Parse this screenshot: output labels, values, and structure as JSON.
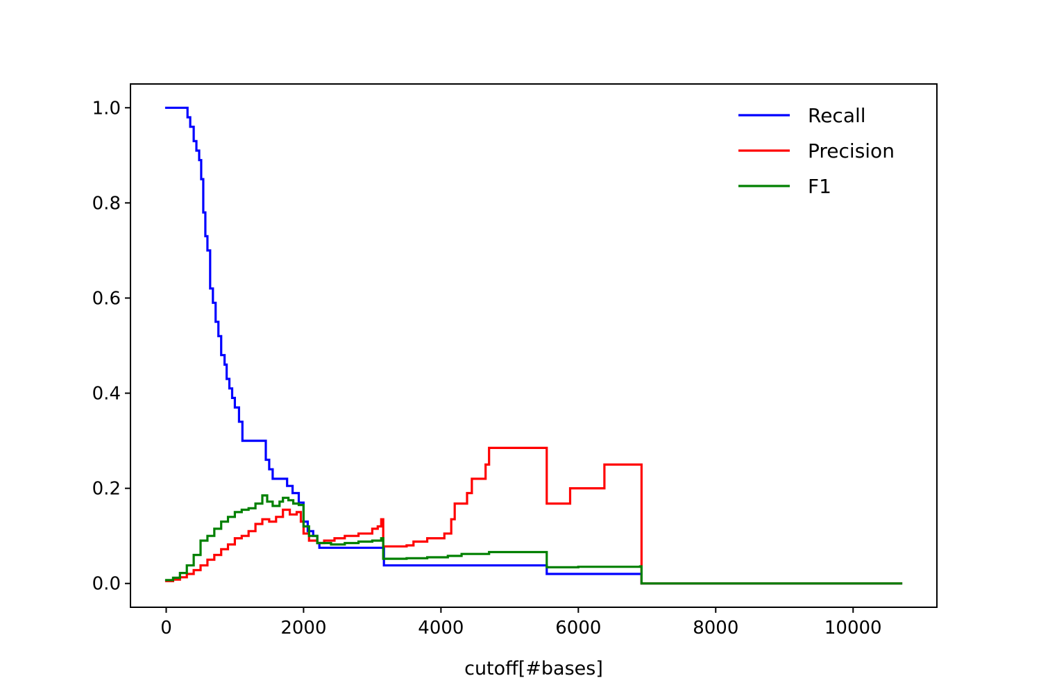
{
  "chart_data": {
    "type": "line",
    "title": "",
    "xlabel": "cutoff[#bases]",
    "ylabel": "",
    "xlim": [
      -520,
      11220
    ],
    "ylim": [
      -0.05,
      1.05
    ],
    "x_ticks": [
      0,
      2000,
      4000,
      6000,
      8000,
      10000
    ],
    "x_tick_labels": [
      "0",
      "2000",
      "4000",
      "6000",
      "8000",
      "10000"
    ],
    "y_ticks": [
      0.0,
      0.2,
      0.4,
      0.6,
      0.8,
      1.0
    ],
    "y_tick_labels": [
      "0.0",
      "0.2",
      "0.4",
      "0.6",
      "0.8",
      "1.0"
    ],
    "grid": false,
    "legend_position": "top-right",
    "series": [
      {
        "name": "Recall",
        "color": "#0000ff",
        "step": true,
        "points": [
          [
            0,
            1.0
          ],
          [
            290,
            1.0
          ],
          [
            310,
            0.98
          ],
          [
            350,
            0.96
          ],
          [
            400,
            0.93
          ],
          [
            440,
            0.91
          ],
          [
            480,
            0.89
          ],
          [
            510,
            0.85
          ],
          [
            540,
            0.78
          ],
          [
            570,
            0.73
          ],
          [
            600,
            0.7
          ],
          [
            640,
            0.62
          ],
          [
            680,
            0.59
          ],
          [
            720,
            0.55
          ],
          [
            760,
            0.52
          ],
          [
            800,
            0.48
          ],
          [
            850,
            0.46
          ],
          [
            880,
            0.43
          ],
          [
            920,
            0.41
          ],
          [
            960,
            0.39
          ],
          [
            1000,
            0.37
          ],
          [
            1060,
            0.34
          ],
          [
            1110,
            0.3
          ],
          [
            1400,
            0.3
          ],
          [
            1450,
            0.26
          ],
          [
            1500,
            0.24
          ],
          [
            1550,
            0.22
          ],
          [
            1720,
            0.22
          ],
          [
            1760,
            0.205
          ],
          [
            1840,
            0.19
          ],
          [
            1930,
            0.17
          ],
          [
            2000,
            0.13
          ],
          [
            2060,
            0.11
          ],
          [
            2140,
            0.1
          ],
          [
            2200,
            0.085
          ],
          [
            2230,
            0.075
          ],
          [
            3150,
            0.075
          ],
          [
            3170,
            0.038
          ],
          [
            5520,
            0.038
          ],
          [
            5540,
            0.02
          ],
          [
            6900,
            0.02
          ],
          [
            6920,
            0.0
          ],
          [
            10700,
            0.0
          ]
        ]
      },
      {
        "name": "Precision",
        "color": "#ff0000",
        "step": true,
        "points": [
          [
            0,
            0.005
          ],
          [
            100,
            0.008
          ],
          [
            200,
            0.013
          ],
          [
            300,
            0.02
          ],
          [
            400,
            0.028
          ],
          [
            500,
            0.038
          ],
          [
            600,
            0.05
          ],
          [
            700,
            0.06
          ],
          [
            800,
            0.072
          ],
          [
            900,
            0.082
          ],
          [
            1000,
            0.095
          ],
          [
            1100,
            0.1
          ],
          [
            1200,
            0.11
          ],
          [
            1300,
            0.125
          ],
          [
            1400,
            0.135
          ],
          [
            1500,
            0.13
          ],
          [
            1600,
            0.14
          ],
          [
            1700,
            0.155
          ],
          [
            1800,
            0.145
          ],
          [
            1900,
            0.15
          ],
          [
            1960,
            0.13
          ],
          [
            2000,
            0.105
          ],
          [
            2080,
            0.09
          ],
          [
            2200,
            0.085
          ],
          [
            2300,
            0.09
          ],
          [
            2450,
            0.095
          ],
          [
            2600,
            0.1
          ],
          [
            2800,
            0.105
          ],
          [
            3000,
            0.115
          ],
          [
            3080,
            0.12
          ],
          [
            3130,
            0.135
          ],
          [
            3160,
            0.078
          ],
          [
            3500,
            0.08
          ],
          [
            3600,
            0.088
          ],
          [
            3800,
            0.095
          ],
          [
            4050,
            0.105
          ],
          [
            4150,
            0.135
          ],
          [
            4200,
            0.168
          ],
          [
            4380,
            0.19
          ],
          [
            4450,
            0.22
          ],
          [
            4650,
            0.25
          ],
          [
            4700,
            0.285
          ],
          [
            5520,
            0.285
          ],
          [
            5540,
            0.168
          ],
          [
            5880,
            0.2
          ],
          [
            6380,
            0.25
          ],
          [
            6900,
            0.25
          ],
          [
            6920,
            0.0
          ],
          [
            10700,
            0.0
          ]
        ]
      },
      {
        "name": "F1",
        "color": "#008000",
        "step": true,
        "points": [
          [
            0,
            0.007
          ],
          [
            100,
            0.012
          ],
          [
            200,
            0.022
          ],
          [
            300,
            0.038
          ],
          [
            400,
            0.06
          ],
          [
            500,
            0.09
          ],
          [
            600,
            0.1
          ],
          [
            700,
            0.115
          ],
          [
            800,
            0.13
          ],
          [
            900,
            0.14
          ],
          [
            1000,
            0.15
          ],
          [
            1100,
            0.155
          ],
          [
            1200,
            0.158
          ],
          [
            1300,
            0.168
          ],
          [
            1400,
            0.185
          ],
          [
            1470,
            0.172
          ],
          [
            1550,
            0.163
          ],
          [
            1650,
            0.172
          ],
          [
            1700,
            0.18
          ],
          [
            1780,
            0.175
          ],
          [
            1850,
            0.168
          ],
          [
            1930,
            0.165
          ],
          [
            2000,
            0.12
          ],
          [
            2080,
            0.1
          ],
          [
            2200,
            0.085
          ],
          [
            2400,
            0.082
          ],
          [
            2600,
            0.085
          ],
          [
            2800,
            0.088
          ],
          [
            3000,
            0.09
          ],
          [
            3130,
            0.095
          ],
          [
            3160,
            0.052
          ],
          [
            3500,
            0.053
          ],
          [
            3800,
            0.055
          ],
          [
            4100,
            0.058
          ],
          [
            4300,
            0.062
          ],
          [
            4700,
            0.066
          ],
          [
            5520,
            0.066
          ],
          [
            5540,
            0.034
          ],
          [
            6000,
            0.035
          ],
          [
            6900,
            0.036
          ],
          [
            6920,
            0.0
          ],
          [
            10700,
            0.0
          ]
        ]
      }
    ]
  }
}
